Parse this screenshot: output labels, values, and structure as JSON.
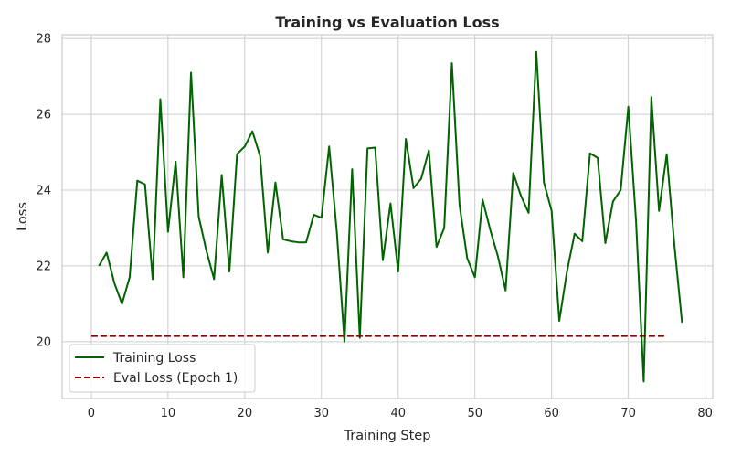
{
  "chart_data": {
    "type": "line",
    "title": "Training vs Evaluation Loss",
    "xlabel": "Training Step",
    "ylabel": "Loss",
    "xlim": [
      -3.8,
      81
    ],
    "ylim": [
      18.5,
      28.1
    ],
    "xticks": [
      0,
      10,
      20,
      30,
      40,
      50,
      60,
      70,
      80
    ],
    "yticks": [
      20,
      22,
      24,
      26,
      28
    ],
    "grid": true,
    "legend_position": "lower-left",
    "series": [
      {
        "name": "Training Loss",
        "color": "#006400",
        "style": "solid",
        "x": [
          1,
          2,
          3,
          4,
          5,
          6,
          7,
          8,
          9,
          10,
          11,
          12,
          13,
          14,
          15,
          16,
          17,
          18,
          19,
          20,
          21,
          22,
          23,
          24,
          25,
          26,
          27,
          28,
          29,
          30,
          31,
          32,
          33,
          34,
          35,
          36,
          37,
          38,
          39,
          40,
          41,
          42,
          43,
          44,
          45,
          46,
          47,
          48,
          49,
          50,
          51,
          52,
          53,
          54,
          55,
          56,
          57,
          58,
          59,
          60,
          61,
          62,
          63,
          64,
          65,
          66,
          67,
          68,
          69,
          70,
          71,
          72,
          73,
          74,
          75,
          76,
          77
        ],
        "y": [
          22.0,
          22.35,
          21.55,
          21.0,
          21.7,
          24.25,
          24.15,
          21.65,
          26.4,
          22.9,
          24.75,
          21.7,
          27.1,
          23.3,
          22.4,
          21.65,
          24.4,
          21.85,
          24.95,
          25.15,
          25.55,
          24.9,
          22.35,
          24.2,
          22.7,
          22.65,
          22.62,
          22.62,
          23.35,
          23.27,
          25.15,
          22.9,
          20.0,
          24.55,
          20.1,
          25.1,
          25.12,
          22.15,
          23.65,
          21.85,
          25.35,
          24.05,
          24.3,
          25.05,
          22.5,
          23.0,
          27.35,
          23.6,
          22.2,
          21.7,
          23.75,
          22.95,
          22.25,
          21.35,
          24.45,
          23.85,
          23.4,
          27.65,
          24.2,
          23.45,
          20.55,
          21.85,
          22.85,
          22.65,
          24.97,
          24.85,
          22.6,
          23.7,
          24.0,
          26.2,
          23.2,
          18.95,
          26.45,
          23.45,
          24.95,
          22.55,
          20.5
        ]
      },
      {
        "name": "Eval Loss (Epoch 1)",
        "color": "#8b0000",
        "style": "dashed",
        "x": [
          0,
          75
        ],
        "y": [
          20.15,
          20.15
        ]
      }
    ]
  }
}
